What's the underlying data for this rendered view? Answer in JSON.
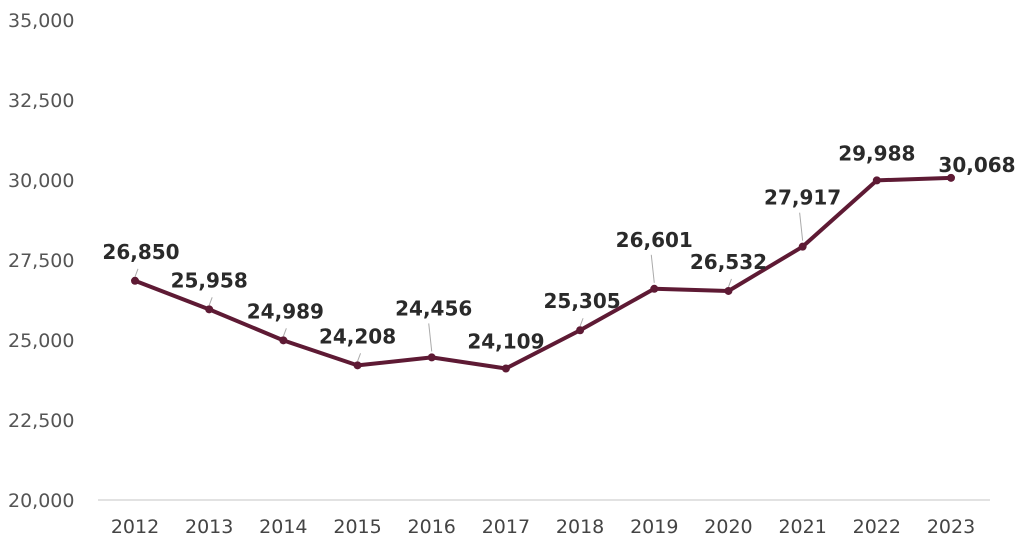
{
  "chart_data": {
    "type": "line",
    "title": "",
    "xlabel": "",
    "ylabel": "",
    "categories": [
      "2012",
      "2013",
      "2014",
      "2015",
      "2016",
      "2017",
      "2018",
      "2019",
      "2020",
      "2021",
      "2022",
      "2023"
    ],
    "series": [
      {
        "values": [
          26850,
          25958,
          24989,
          24208,
          24456,
          24109,
          25305,
          26601,
          26532,
          27917,
          29988,
          30068
        ],
        "data_labels": [
          "26,850",
          "25,958",
          "24,989",
          "24,208",
          "24,456",
          "24,109",
          "25,305",
          "26,601",
          "26,532",
          "27,917",
          "29,988",
          "30,068"
        ]
      }
    ],
    "ylim": [
      20000,
      35000
    ],
    "yticks": [
      20000,
      22500,
      25000,
      27500,
      30000,
      32500,
      35000
    ],
    "ytick_labels": [
      "20,000",
      "22,500",
      "25,000",
      "27,500",
      "30,000",
      "32,500",
      "35,000"
    ],
    "grid": false,
    "legend": "none",
    "line_color": "#5e1a34",
    "label_color": "#2a2a2a",
    "axis_color": "#d9d9d9"
  }
}
